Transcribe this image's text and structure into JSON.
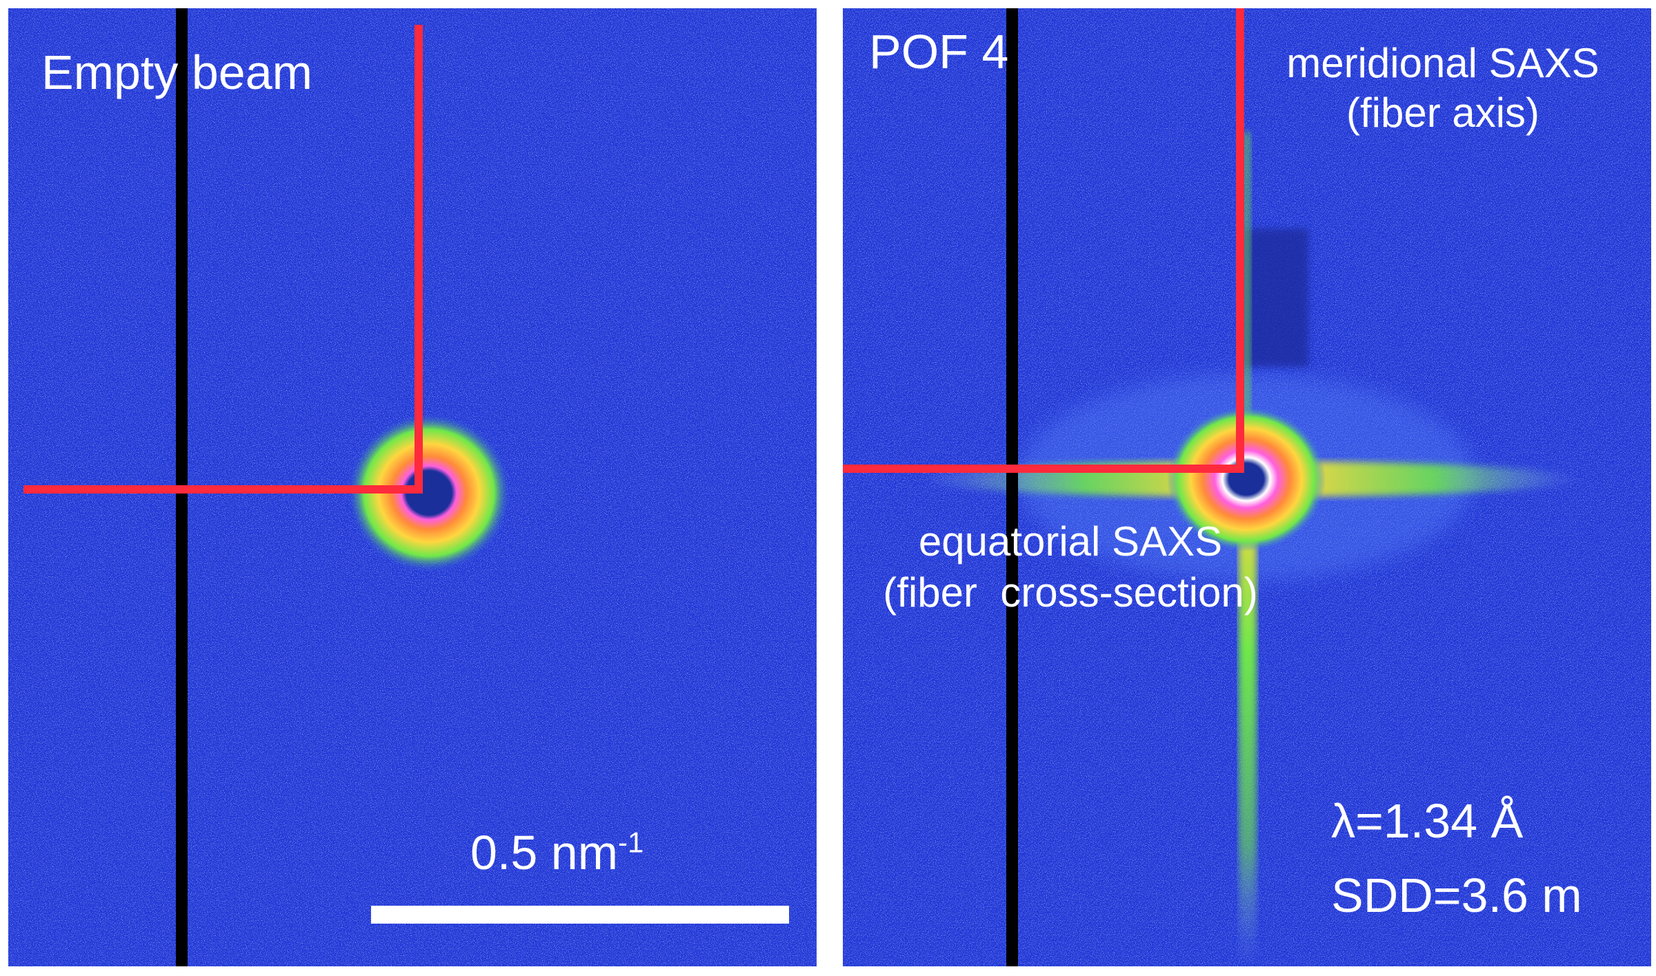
{
  "panels": [
    {
      "title": "Empty beam",
      "scale_bar": {
        "label_base": "0.5 nm",
        "label_sup": "-1"
      }
    },
    {
      "title": "POF 4",
      "meridional": {
        "line1": "meridional SAXS",
        "line2": "(fiber axis)"
      },
      "equatorial": {
        "line1": "equatorial SAXS",
        "line2": "(fiber  cross-section)"
      },
      "params": {
        "wavelength": "λ=1.34 Å",
        "sdd": "SDD=3.6 m"
      }
    }
  ],
  "colors": {
    "background": "#1f36d6",
    "beamstop": "#000000",
    "profile_line": "#ff2a3c",
    "scale_bar": "#ffffff",
    "text": "#ffffff"
  }
}
